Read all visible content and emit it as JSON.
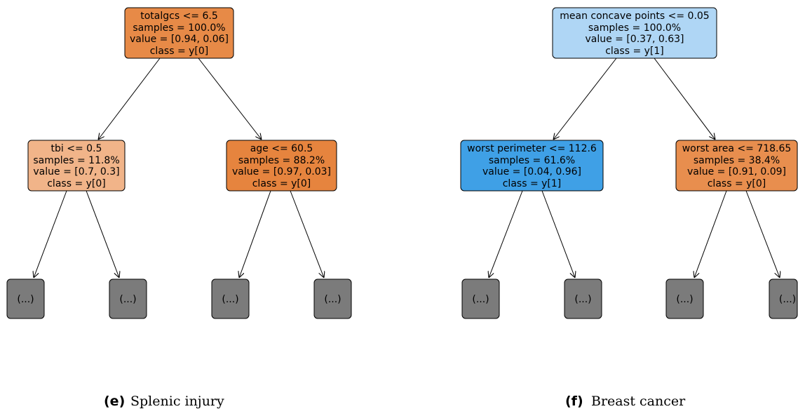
{
  "trees": [
    {
      "label": "(e)",
      "caption": "Splenic injury",
      "nodes": [
        {
          "lines": [
            "totalgcs <= 6.5",
            "samples = 100.0%",
            "value = [0.94, 0.06]",
            "class = y[0]"
          ],
          "color": "#e78a47"
        },
        {
          "lines": [
            "tbi <= 0.5",
            "samples = 11.8%",
            "value = [0.7, 0.3]",
            "class = y[0]"
          ],
          "color": "#f1b489"
        },
        {
          "lines": [
            "age <= 60.5",
            "samples = 88.2%",
            "value = [0.97, 0.03]",
            "class = y[0]"
          ],
          "color": "#e6843e"
        },
        {
          "lines": [
            "(...)"
          ],
          "color": "#7b7b7b"
        },
        {
          "lines": [
            "(...)"
          ],
          "color": "#7b7b7b"
        },
        {
          "lines": [
            "(...)"
          ],
          "color": "#7b7b7b"
        },
        {
          "lines": [
            "(...)"
          ],
          "color": "#7b7b7b"
        }
      ]
    },
    {
      "label": "(f)",
      "caption": "Breast cancer",
      "nodes": [
        {
          "lines": [
            "mean concave points <= 0.05",
            "samples = 100.0%",
            "value = [0.37, 0.63]",
            "class = y[1]"
          ],
          "color": "#afd6f5"
        },
        {
          "lines": [
            "worst perimeter <= 112.6",
            "samples = 61.6%",
            "value = [0.04, 0.96]",
            "class = y[1]"
          ],
          "color": "#3fa0e6"
        },
        {
          "lines": [
            "worst area <= 718.65",
            "samples = 38.4%",
            "value = [0.91, 0.09]",
            "class = y[0]"
          ],
          "color": "#e88e4e"
        },
        {
          "lines": [
            "(...)"
          ],
          "color": "#7b7b7b"
        },
        {
          "lines": [
            "(...)"
          ],
          "color": "#7b7b7b"
        },
        {
          "lines": [
            "(...)"
          ],
          "color": "#7b7b7b"
        },
        {
          "lines": [
            "(...)"
          ],
          "color": "#7b7b7b"
        }
      ]
    }
  ]
}
